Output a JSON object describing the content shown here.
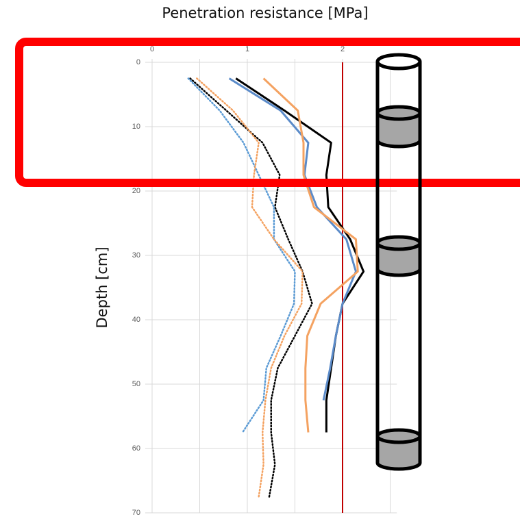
{
  "chart_data": {
    "type": "line",
    "title": "Penetration resistance [MPa]",
    "y_label": "Depth [cm]",
    "y": [
      2.5,
      7.5,
      12.5,
      17.5,
      22.5,
      27.5,
      32.5,
      37.5,
      42.5,
      47.5,
      52.5,
      57.5,
      62.5,
      67.5
    ],
    "series": [
      {
        "color": "#000000",
        "style": "solid",
        "values": [
          0.88,
          1.39,
          1.88,
          1.83,
          1.85,
          2.08,
          2.22,
          2.0,
          1.93,
          1.88,
          1.83,
          1.83,
          null,
          null
        ]
      },
      {
        "color": "#5b8bc9",
        "style": "solid",
        "values": [
          0.81,
          1.35,
          1.64,
          1.6,
          1.73,
          2.04,
          2.14,
          2.0,
          1.93,
          1.87,
          1.8,
          null,
          null,
          null
        ]
      },
      {
        "color": "#f4a261",
        "style": "solid",
        "values": [
          1.17,
          1.53,
          1.59,
          1.59,
          1.7,
          2.14,
          2.16,
          1.77,
          1.63,
          1.61,
          1.61,
          1.64,
          null,
          null
        ]
      },
      {
        "color": "#000000",
        "style": "dotted",
        "values": [
          0.4,
          0.78,
          1.16,
          1.34,
          1.29,
          1.43,
          1.58,
          1.68,
          1.5,
          1.32,
          1.25,
          1.25,
          1.29,
          1.23
        ]
      },
      {
        "color": "#5b9bd5",
        "style": "dotted",
        "values": [
          0.38,
          0.71,
          0.96,
          1.12,
          1.28,
          1.28,
          1.5,
          1.49,
          1.35,
          1.2,
          1.17,
          0.95,
          null,
          null
        ]
      },
      {
        "color": "#f4a261",
        "style": "dotted",
        "values": [
          0.47,
          0.85,
          1.12,
          1.07,
          1.05,
          1.28,
          1.58,
          1.57,
          1.39,
          1.25,
          1.19,
          1.16,
          1.17,
          1.12
        ]
      }
    ],
    "xlim": [
      0,
      2.57
    ],
    "xticks": [
      0,
      1,
      2
    ],
    "minor_xticks": [
      0.5,
      1.5,
      2.5
    ],
    "ylim": [
      0,
      70
    ],
    "yticks": [
      0,
      10,
      20,
      30,
      40,
      50,
      60,
      70
    ],
    "y_inverted": true,
    "threshold": 2,
    "threshold_color": "#c00000",
    "grid": true
  }
}
